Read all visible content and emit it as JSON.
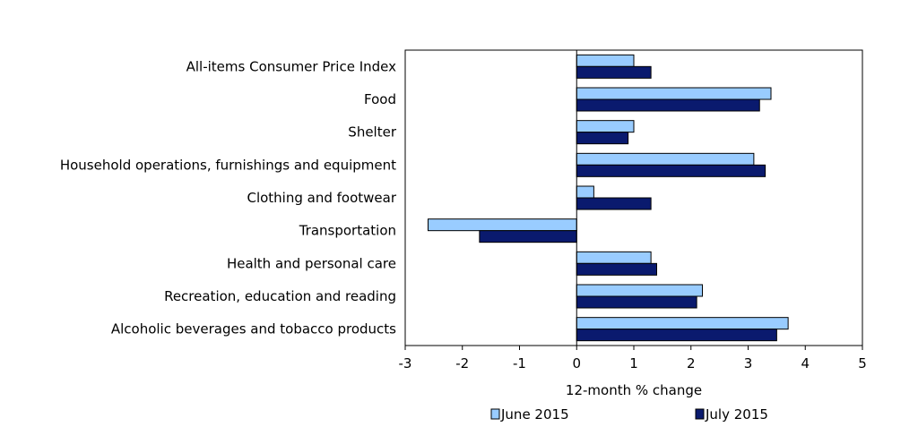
{
  "chart_data": {
    "type": "bar",
    "orientation": "horizontal",
    "categories": [
      "All-items Consumer Price Index",
      "Food",
      "Shelter",
      "Household operations, furnishings and equipment",
      "Clothing and footwear",
      "Transportation",
      "Health and personal care",
      "Recreation, education and reading",
      "Alcoholic beverages and tobacco products"
    ],
    "series": [
      {
        "name": "June 2015",
        "color": "#99ccff",
        "values": [
          1.0,
          3.4,
          1.0,
          3.1,
          0.3,
          -2.6,
          1.3,
          2.2,
          3.7
        ]
      },
      {
        "name": "July 2015",
        "color": "#0a1a6e",
        "values": [
          1.3,
          3.2,
          0.9,
          3.3,
          1.3,
          -1.7,
          1.4,
          2.1,
          3.5
        ]
      }
    ],
    "xlabel": "12-month % change",
    "xlim": [
      -3,
      5
    ],
    "xticks": [
      "-3",
      "-2",
      "-1",
      "0",
      "1",
      "2",
      "3",
      "4",
      "5"
    ],
    "grid": false,
    "legend_position": "bottom"
  }
}
